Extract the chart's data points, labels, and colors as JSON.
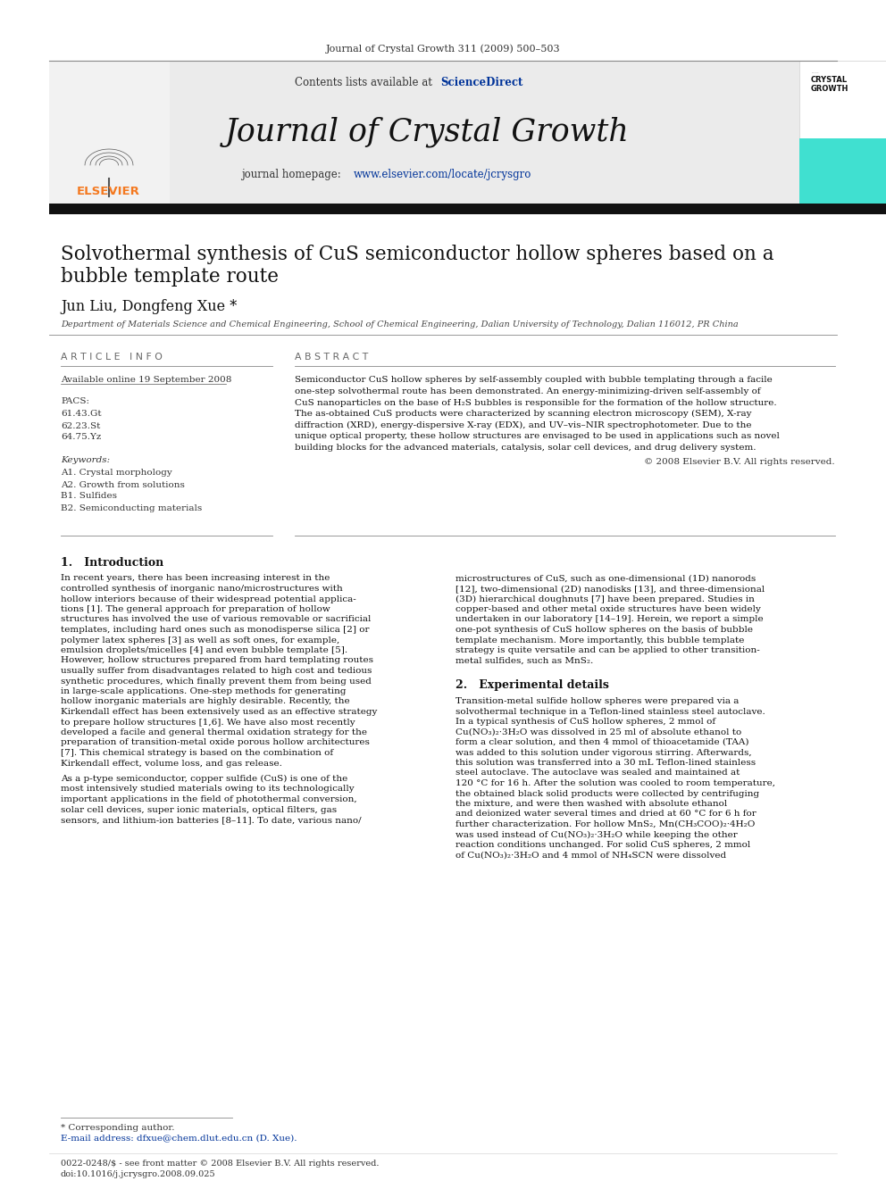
{
  "page_citation": "Journal of Crystal Growth 311 (2009) 500–503",
  "journal_name": "Journal of Crystal Growth",
  "sciencedirect": "ScienceDirect",
  "homepage_url": "www.elsevier.com/locate/jcrysgro",
  "article_info_header": "A R T I C L E   I N F O",
  "available_online": "Available online 19 September 2008",
  "pacs_label": "PACS:",
  "pacs_codes": [
    "61.43.Gt",
    "62.23.St",
    "64.75.Yz"
  ],
  "keywords_label": "Keywords:",
  "keywords": [
    "A1. Crystal morphology",
    "A2. Growth from solutions",
    "B1. Sulfides",
    "B2. Semiconducting materials"
  ],
  "abstract_header": "A B S T R A C T",
  "copyright": "© 2008 Elsevier B.V. All rights reserved.",
  "section1_title": "1.   Introduction",
  "section2_title": "2.   Experimental details",
  "affiliation": "Department of Materials Science and Chemical Engineering, School of Chemical Engineering, Dalian University of Technology, Dalian 116012, PR China",
  "footnote_star": "* Corresponding author.",
  "footnote_email": "E-mail address: dfxue@chem.dlut.edu.cn (D. Xue).",
  "footer_issn": "0022-0248/$ - see front matter © 2008 Elsevier B.V. All rights reserved.",
  "footer_doi": "doi:10.1016/j.jcrysgro.2008.09.025",
  "abstract_lines": [
    "Semiconductor CuS hollow spheres by self-assembly coupled with bubble templating through a facile",
    "one-step solvothermal route has been demonstrated. An energy-minimizing-driven self-assembly of",
    "CuS nanoparticles on the base of H₂S bubbles is responsible for the formation of the hollow structure.",
    "The as-obtained CuS products were characterized by scanning electron microscopy (SEM), X-ray",
    "diffraction (XRD), energy-dispersive X-ray (EDX), and UV–vis–NIR spectrophotometer. Due to the",
    "unique optical property, these hollow structures are envisaged to be used in applications such as novel",
    "building blocks for the advanced materials, catalysis, solar cell devices, and drug delivery system."
  ],
  "intro_p1_lines": [
    "In recent years, there has been increasing interest in the",
    "controlled synthesis of inorganic nano/microstructures with",
    "hollow interiors because of their widespread potential applica-",
    "tions [1]. The general approach for preparation of hollow",
    "structures has involved the use of various removable or sacrificial",
    "templates, including hard ones such as monodisperse silica [2] or",
    "polymer latex spheres [3] as well as soft ones, for example,",
    "emulsion droplets/micelles [4] and even bubble template [5].",
    "However, hollow structures prepared from hard templating routes",
    "usually suffer from disadvantages related to high cost and tedious",
    "synthetic procedures, which finally prevent them from being used",
    "in large-scale applications. One-step methods for generating",
    "hollow inorganic materials are highly desirable. Recently, the",
    "Kirkendall effect has been extensively used as an effective strategy",
    "to prepare hollow structures [1,6]. We have also most recently",
    "developed a facile and general thermal oxidation strategy for the",
    "preparation of transition-metal oxide porous hollow architectures",
    "[7]. This chemical strategy is based on the combination of",
    "Kirkendall effect, volume loss, and gas release."
  ],
  "intro_p2_lines": [
    "As a p-type semiconductor, copper sulfide (CuS) is one of the",
    "most intensively studied materials owing to its technologically",
    "important applications in the field of photothermal conversion,",
    "solar cell devices, super ionic materials, optical filters, gas",
    "sensors, and lithium-ion batteries [8–11]. To date, various nano/"
  ],
  "col2_intro_lines": [
    "microstructures of CuS, such as one-dimensional (1D) nanorods",
    "[12], two-dimensional (2D) nanodisks [13], and three-dimensional",
    "(3D) hierarchical doughnuts [7] have been prepared. Studies in",
    "copper-based and other metal oxide structures have been widely",
    "undertaken in our laboratory [14–19]. Herein, we report a simple",
    "one-pot synthesis of CuS hollow spheres on the basis of bubble",
    "template mechanism. More importantly, this bubble template",
    "strategy is quite versatile and can be applied to other transition-",
    "metal sulfides, such as MnS₂."
  ],
  "exp_lines": [
    "Transition-metal sulfide hollow spheres were prepared via a",
    "solvothermal technique in a Teflon-lined stainless steel autoclave.",
    "In a typical synthesis of CuS hollow spheres, 2 mmol of",
    "Cu(NO₃)₂·3H₂O was dissolved in 25 ml of absolute ethanol to",
    "form a clear solution, and then 4 mmol of thioacetamide (TAA)",
    "was added to this solution under vigorous stirring. Afterwards,",
    "this solution was transferred into a 30 mL Teflon-lined stainless",
    "steel autoclave. The autoclave was sealed and maintained at",
    "120 °C for 16 h. After the solution was cooled to room temperature,",
    "the obtained black solid products were collected by centrifuging",
    "the mixture, and were then washed with absolute ethanol",
    "and deionized water several times and dried at 60 °C for 6 h for",
    "further characterization. For hollow MnS₂, Mn(CH₃COO)₂·4H₂O",
    "was used instead of Cu(NO₃)₂·3H₂O while keeping the other",
    "reaction conditions unchanged. For solid CuS spheres, 2 mmol",
    "of Cu(NO₃)₂·3H₂O and 4 mmol of NH₄SCN were dissolved"
  ],
  "bg_color": "#ffffff",
  "teal_color": "#40e0d0",
  "elsevier_orange": "#f47920",
  "link_color": "#003399",
  "dark_bar": "#111111"
}
